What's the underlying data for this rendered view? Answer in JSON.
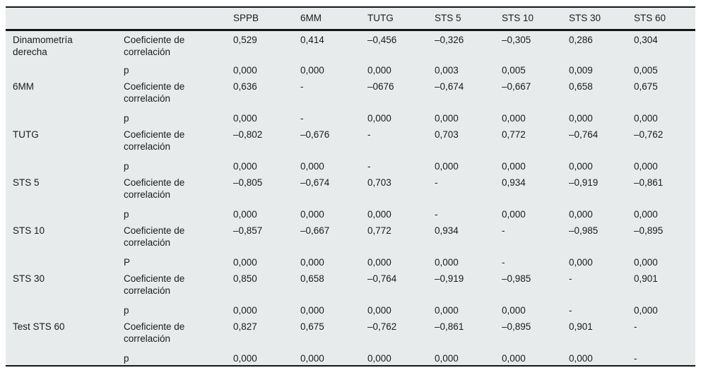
{
  "colors": {
    "background": "#e7ebeb",
    "rule": "#141414",
    "text": "#1c1c1c"
  },
  "table": {
    "header": [
      "",
      "",
      "SPPB",
      "6MM",
      "TUTG",
      "STS 5",
      "STS 10",
      "STS 30",
      "STS 60"
    ],
    "rows": [
      {
        "label": "Dinamometría derecha",
        "stat_label": "Coeficiente de correlación",
        "coef": [
          "0,529",
          "0,414",
          "–0,456",
          "–0,326",
          "–0,305",
          "0,286",
          "0,304"
        ],
        "p_label": "p",
        "p": [
          "0,000",
          "0,000",
          "0,000",
          "0,003",
          "0,005",
          "0,009",
          "0,005"
        ]
      },
      {
        "label": "6MM",
        "stat_label": "Coeficiente de correlación",
        "coef": [
          "0,636",
          "-",
          "–0676",
          "–0,674",
          "–0,667",
          "0,658",
          "0,675"
        ],
        "p_label": "p",
        "p": [
          "0,000",
          "-",
          "0,000",
          "0,000",
          "0,000",
          "0,000",
          "0,000"
        ]
      },
      {
        "label": "TUTG",
        "stat_label": "Coeficiente de correlación",
        "coef": [
          "–0,802",
          "–0,676",
          "-",
          "0,703",
          "0,772",
          "–0,764",
          "–0,762"
        ],
        "p_label": "p",
        "p": [
          "0,000",
          "0,000",
          "-",
          "0,000",
          "0,000",
          "0,000",
          "0,000"
        ]
      },
      {
        "label": "STS 5",
        "stat_label": "Coeficiente de correlación",
        "coef": [
          "–0,805",
          "–0,674",
          "0,703",
          "-",
          "0,934",
          "–0,919",
          "–0,861"
        ],
        "p_label": "p",
        "p": [
          "0,000",
          "0,000",
          "0,000",
          "-",
          "0,000",
          "0,000",
          "0,000"
        ]
      },
      {
        "label": "STS 10",
        "stat_label": "Coeficiente de correlación",
        "coef": [
          "–0,857",
          "–0,667",
          "0,772",
          "0,934",
          "-",
          "–0,985",
          "–0,895"
        ],
        "p_label": "P",
        "p": [
          "0,000",
          "0,000",
          "0,000",
          "0,000",
          "-",
          "0,000",
          "0,000"
        ]
      },
      {
        "label": "STS 30",
        "stat_label": "Coeficiente de correlación",
        "coef": [
          "0,850",
          "0,658",
          "–0,764",
          "–0,919",
          "–0,985",
          "-",
          "0,901"
        ],
        "p_label": "p",
        "p": [
          "0,000",
          "0,000",
          "0,000",
          "0,000",
          "0,000",
          "-",
          "0,000"
        ]
      },
      {
        "label": "Test STS 60",
        "stat_label": "Coeficiente de correlación",
        "coef": [
          "0,827",
          "0,675",
          "–0,762",
          "–0,861",
          "–0,895",
          "0,901",
          "-"
        ],
        "p_label": "p",
        "p": [
          "0,000",
          "0,000",
          "0,000",
          "0,000",
          "0,000",
          "0,000",
          "-"
        ]
      }
    ]
  }
}
